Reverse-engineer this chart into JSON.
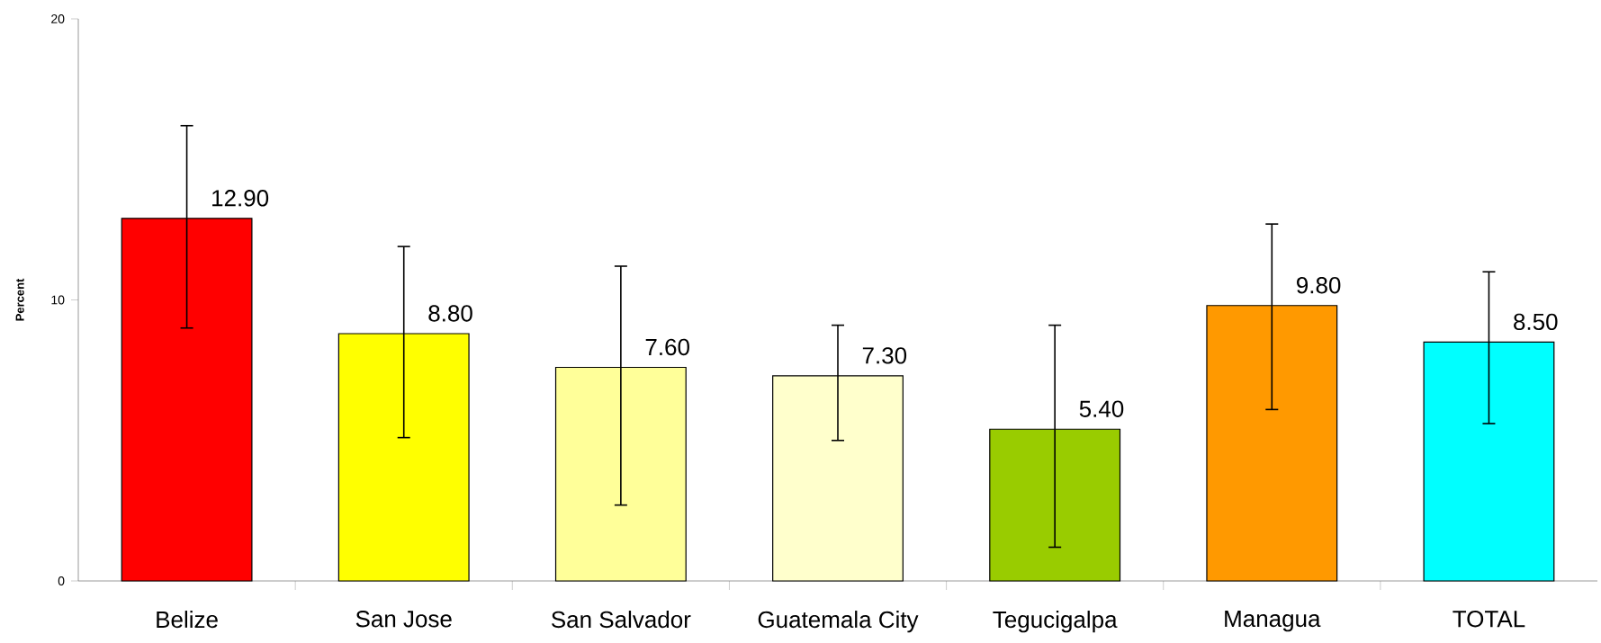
{
  "chart_data": {
    "type": "bar",
    "ylabel": "Percent",
    "categories": [
      "Belize",
      "San Jose",
      "San Salvador",
      "Guatemala City",
      "Tegucigalpa",
      "Managua",
      "TOTAL"
    ],
    "values": [
      12.9,
      8.8,
      7.6,
      7.3,
      5.4,
      9.8,
      8.5
    ],
    "value_labels": [
      "12.90",
      "8.80",
      "7.60",
      "7.30",
      "5.40",
      "9.80",
      "8.50"
    ],
    "errors": [
      [
        9.0,
        16.2
      ],
      [
        5.1,
        11.9
      ],
      [
        2.7,
        11.2
      ],
      [
        5.0,
        9.1
      ],
      [
        1.2,
        9.1
      ],
      [
        6.1,
        12.7
      ],
      [
        5.6,
        11.0
      ]
    ],
    "colors": [
      "#ff0000",
      "#ffff00",
      "#ffff99",
      "#ffffcc",
      "#99cc00",
      "#ff9900",
      "#00ffff"
    ],
    "ylim": [
      0,
      20
    ],
    "yticks": [
      0,
      10,
      20
    ],
    "grid": false
  }
}
